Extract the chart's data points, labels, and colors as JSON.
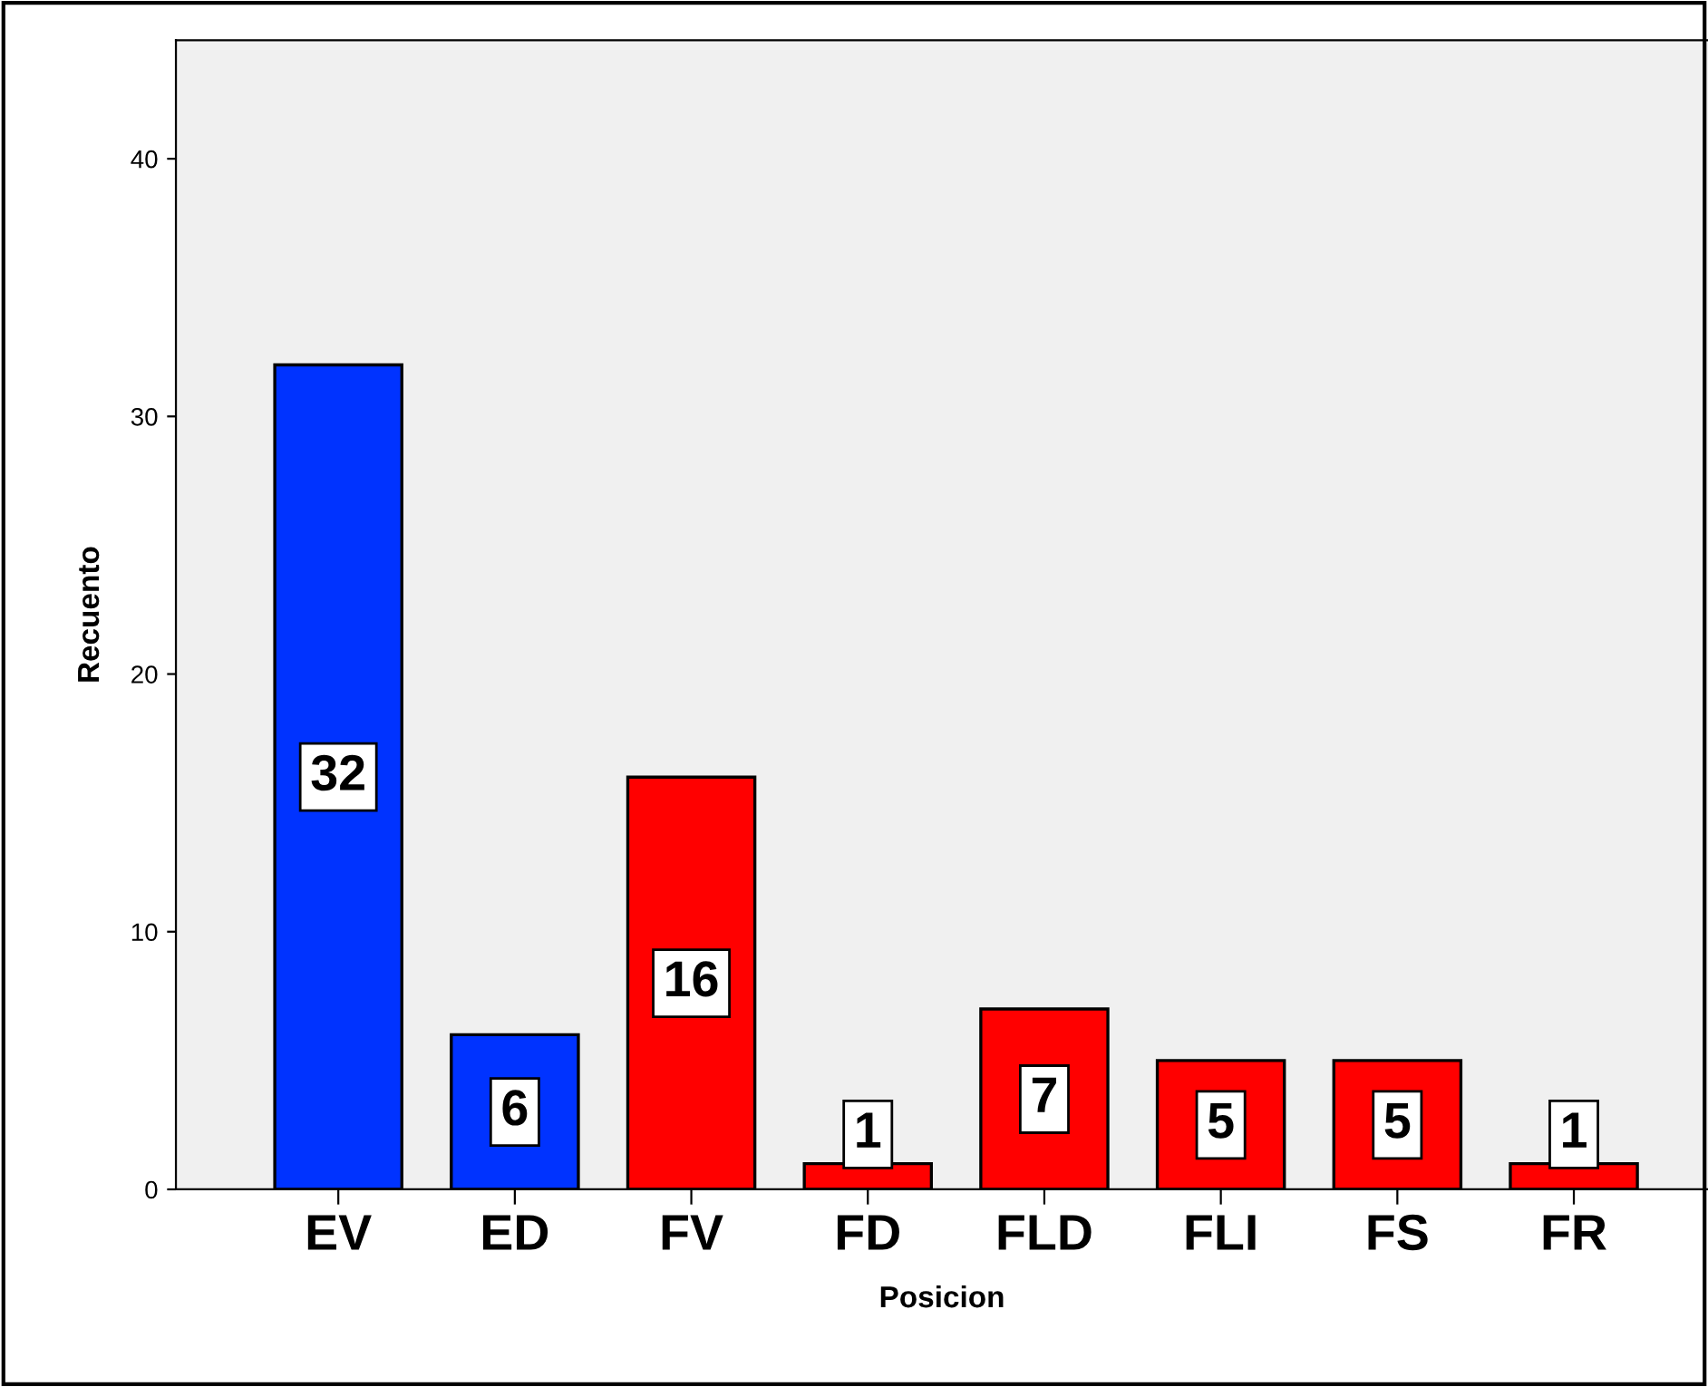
{
  "chart_data": {
    "type": "bar",
    "xlabel": "Posicion",
    "ylabel": "Recuento",
    "categories": [
      "EV",
      "ED",
      "FV",
      "FD",
      "FLD",
      "FLI",
      "FS",
      "FR"
    ],
    "values": [
      32,
      6,
      16,
      1,
      7,
      5,
      5,
      1
    ],
    "colors": [
      "#0033ff",
      "#0033ff",
      "#ff0000",
      "#ff0000",
      "#ff0000",
      "#ff0000",
      "#ff0000",
      "#ff0000"
    ],
    "ylim": [
      0,
      44.6
    ],
    "yticks": [
      0,
      10,
      20,
      30,
      40
    ],
    "grid": false,
    "data_labels": true
  }
}
